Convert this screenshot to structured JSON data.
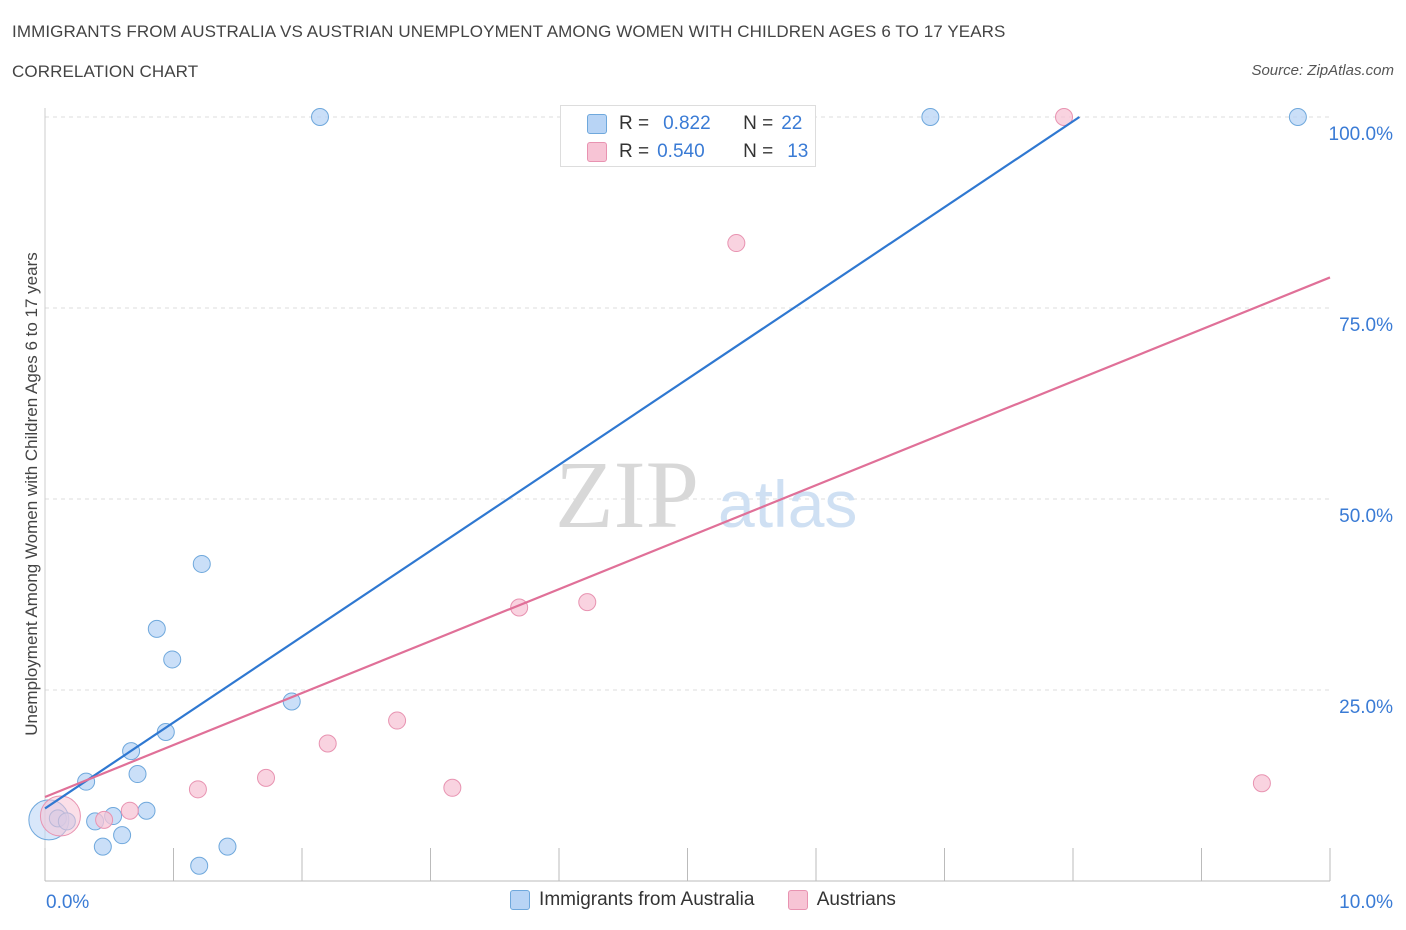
{
  "chart_data": {
    "type": "scatter",
    "title": "IMMIGRANTS FROM AUSTRALIA VS AUSTRIAN UNEMPLOYMENT AMONG WOMEN WITH CHILDREN AGES 6 TO 17 YEARS",
    "subtitle": "CORRELATION CHART",
    "source": "Source: ZipAtlas.com",
    "watermark": "ZIPatlas",
    "ylabel": "Unemployment Among Women with Children Ages 6 to 17 years",
    "xlabel": "",
    "xlim": [
      0,
      10
    ],
    "ylim": [
      0,
      100
    ],
    "x_tick_labels": {
      "min": "0.0%",
      "max": "10.0%"
    },
    "y_ticks": [
      {
        "value": 25,
        "label": "25.0%"
      },
      {
        "value": 50,
        "label": "50.0%"
      },
      {
        "value": 75,
        "label": "75.0%"
      },
      {
        "value": 100,
        "label": "100.0%"
      }
    ],
    "grid": true,
    "legend_position": "bottom-center",
    "series": [
      {
        "name": "Immigrants from Australia",
        "color": "#6fa8dc",
        "fill": "#b8d4f5",
        "line_color": "#2f78d1",
        "R": "0.822",
        "N": "22",
        "trend": {
          "x": [
            0,
            8.05
          ],
          "y": [
            9.5,
            100.0
          ]
        },
        "points": [
          {
            "x": 0.03,
            "y": 8.0,
            "big": true
          },
          {
            "x": 0.1,
            "y": 8.2
          },
          {
            "x": 0.17,
            "y": 7.8
          },
          {
            "x": 0.32,
            "y": 13.0
          },
          {
            "x": 0.39,
            "y": 7.8
          },
          {
            "x": 0.45,
            "y": 4.5
          },
          {
            "x": 0.53,
            "y": 8.5
          },
          {
            "x": 0.6,
            "y": 6.0
          },
          {
            "x": 0.67,
            "y": 17.0
          },
          {
            "x": 0.72,
            "y": 14.0
          },
          {
            "x": 0.79,
            "y": 9.2
          },
          {
            "x": 0.87,
            "y": 33.0
          },
          {
            "x": 0.94,
            "y": 19.5
          },
          {
            "x": 0.99,
            "y": 29.0
          },
          {
            "x": 1.2,
            "y": 2.0
          },
          {
            "x": 1.22,
            "y": 41.5
          },
          {
            "x": 1.42,
            "y": 4.5
          },
          {
            "x": 1.92,
            "y": 23.5
          },
          {
            "x": 2.14,
            "y": 100.0
          },
          {
            "x": 6.89,
            "y": 100.0
          },
          {
            "x": 9.75,
            "y": 100.0
          }
        ]
      },
      {
        "name": "Austrians",
        "color": "#e893b1",
        "fill": "#f7c4d5",
        "line_color": "#e07098",
        "R": "0.540",
        "N": "13",
        "trend": {
          "x": [
            0,
            10.0
          ],
          "y": [
            11.0,
            79.0
          ]
        },
        "points": [
          {
            "x": 0.12,
            "y": 8.5,
            "big": true
          },
          {
            "x": 0.46,
            "y": 8.0
          },
          {
            "x": 0.66,
            "y": 9.2
          },
          {
            "x": 1.19,
            "y": 12.0
          },
          {
            "x": 1.72,
            "y": 13.5
          },
          {
            "x": 2.2,
            "y": 18.0
          },
          {
            "x": 2.74,
            "y": 21.0
          },
          {
            "x": 3.17,
            "y": 12.2
          },
          {
            "x": 3.69,
            "y": 35.8
          },
          {
            "x": 4.22,
            "y": 36.5
          },
          {
            "x": 5.38,
            "y": 83.5
          },
          {
            "x": 7.93,
            "y": 100.0
          },
          {
            "x": 9.47,
            "y": 12.8
          }
        ]
      }
    ]
  },
  "stats": {
    "r_label": "R =",
    "n_label": "N =",
    "rows": [
      {
        "r": "0.822",
        "n": "22",
        "fill": "#b8d4f5",
        "stroke": "#6fa8dc"
      },
      {
        "r": "0.540",
        "n": "13",
        "fill": "#f7c4d5",
        "stroke": "#e893b1"
      }
    ]
  },
  "legend": {
    "items": [
      {
        "label": "Immigrants from Australia",
        "fill": "#b8d4f5",
        "stroke": "#6fa8dc"
      },
      {
        "label": "Austrians",
        "fill": "#f7c4d5",
        "stroke": "#e893b1"
      }
    ]
  }
}
